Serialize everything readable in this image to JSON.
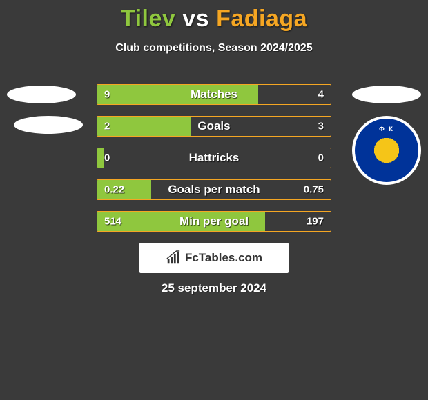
{
  "title": {
    "player1": "Tilev",
    "vs": "vs",
    "player2": "Fadiaga",
    "player1_color": "#8fc73e",
    "vs_color": "#ffffff",
    "player2_color": "#f5a623"
  },
  "subtitle": "Club competitions, Season 2024/2025",
  "colors": {
    "background": "#3a3a3a",
    "bar_fill": "#8fc73e",
    "bar_border": "#f5a623",
    "bar_track": "transparent",
    "text": "#ffffff"
  },
  "bars": [
    {
      "label": "Matches",
      "left": "9",
      "right": "4",
      "fill_pct": 69
    },
    {
      "label": "Goals",
      "left": "2",
      "right": "3",
      "fill_pct": 40
    },
    {
      "label": "Hattricks",
      "left": "0",
      "right": "0",
      "fill_pct": 3
    },
    {
      "label": "Goals per match",
      "left": "0.22",
      "right": "0.75",
      "fill_pct": 23
    },
    {
      "label": "Min per goal",
      "left": "514",
      "right": "197",
      "fill_pct": 72
    }
  ],
  "watermark": "FcTables.com",
  "date": "25 september 2024",
  "badge_right_text": "Ф     К"
}
